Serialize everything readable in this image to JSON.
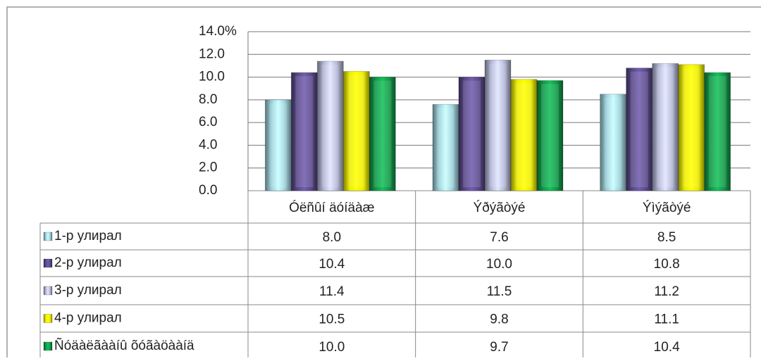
{
  "chart_data": {
    "type": "bar",
    "categories": [
      "Óëñûí äóíäàæ",
      "Ýðýãòýé",
      "Ýìýãòýé"
    ],
    "series": [
      {
        "name": "1-р улирал",
        "color": "#9fd3dc",
        "values": [
          8.0,
          7.6,
          8.5
        ],
        "value_labels": [
          "8.0",
          "7.6",
          "8.5"
        ]
      },
      {
        "name": "2-р улирал",
        "color": "#5b4a8c",
        "values": [
          10.4,
          10.0,
          10.8
        ],
        "value_labels": [
          "10.4",
          "10.0",
          "10.8"
        ]
      },
      {
        "name": "3-р улирал",
        "color": "#b4b8d6",
        "values": [
          11.4,
          11.5,
          11.2
        ],
        "value_labels": [
          "11.4",
          "11.5",
          "11.2"
        ]
      },
      {
        "name": "4-р улирал",
        "color": "#eeee00",
        "values": [
          10.5,
          9.8,
          11.1
        ],
        "value_labels": [
          "10.5",
          "9.8",
          "11.1"
        ]
      },
      {
        "name": "Ñóäàëãààíû õóãàöààíä",
        "color": "#109a48",
        "values": [
          10.0,
          9.7,
          10.4
        ],
        "value_labels": [
          "10.0",
          "9.7",
          "10.4"
        ]
      }
    ],
    "ylim": [
      0,
      14
    ],
    "yticks": [
      {
        "value": 0,
        "label": "0.0"
      },
      {
        "value": 2,
        "label": "2.0"
      },
      {
        "value": 4,
        "label": "4.0"
      },
      {
        "value": 6,
        "label": "6.0"
      },
      {
        "value": 8,
        "label": "8.0"
      },
      {
        "value": 10,
        "label": "10.0"
      },
      {
        "value": 12,
        "label": "12.0"
      },
      {
        "value": 14,
        "label": "14.0%"
      }
    ],
    "grid": true
  }
}
